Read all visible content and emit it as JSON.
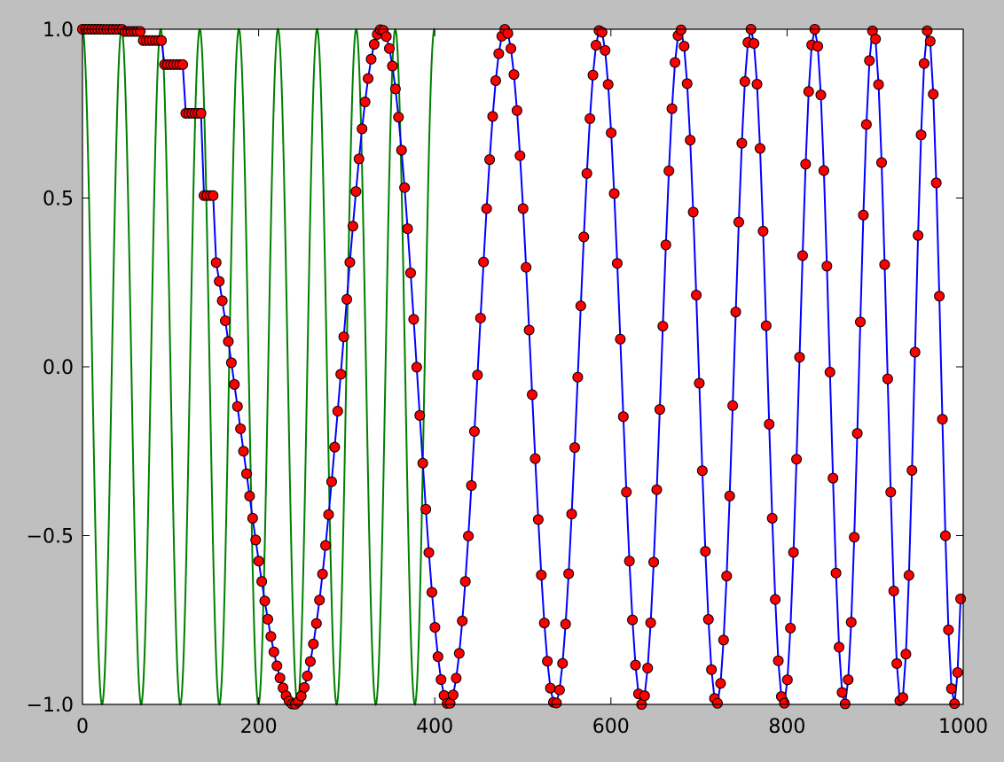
{
  "figure": {
    "background": "#bfbfbf",
    "axes_background": "#ffffff"
  },
  "chart_data": {
    "type": "line",
    "title": "",
    "xlabel": "",
    "ylabel": "",
    "xlim": [
      0,
      1000
    ],
    "ylim": [
      -1.0,
      1.0
    ],
    "grid": false,
    "legend": "none",
    "x_ticks": [
      0,
      200,
      400,
      600,
      800,
      1000
    ],
    "x_tick_labels": [
      "0",
      "200",
      "400",
      "600",
      "800",
      "1000"
    ],
    "y_ticks": [
      -1.0,
      -0.5,
      0.0,
      0.5,
      1.0
    ],
    "y_tick_labels": [
      "−1.0",
      "−0.5",
      "0.0",
      "0.5",
      "1.0"
    ],
    "series": [
      {
        "kind": "line",
        "color": "#008000",
        "function": "cos(2*pi*x/44.4)",
        "x_range": [
          0,
          400
        ],
        "period": 44.4,
        "amplitude": 1.0
      },
      {
        "kind": "line+markers",
        "color": "#0000ff",
        "marker_face": "#ff0000",
        "marker_edge": "#000000",
        "function": "cos(pi*x^2/57600)",
        "x_range": [
          0,
          1000
        ],
        "x_step": 3.45,
        "sample_and_hold_until": 150,
        "hold_block": 23
      }
    ]
  }
}
